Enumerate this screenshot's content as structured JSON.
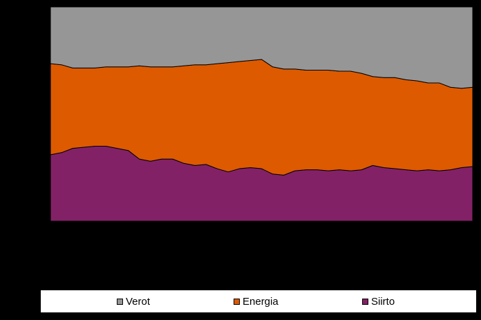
{
  "chart_data": {
    "type": "area",
    "stacked": true,
    "normalized": true,
    "title": "",
    "xlabel": "",
    "ylabel": "",
    "ylim": [
      0,
      1
    ],
    "grid": false,
    "legend_position": "bottom",
    "x": [
      0,
      1,
      2,
      3,
      4,
      5,
      6,
      7,
      8,
      9,
      10,
      11,
      12,
      13,
      14,
      15,
      16,
      17,
      18,
      19,
      20,
      21,
      22,
      23,
      24,
      25,
      26,
      27,
      28,
      29,
      30,
      31,
      32,
      33,
      34,
      35,
      36,
      37,
      38
    ],
    "series": [
      {
        "name": "Siirto",
        "color": "#832166",
        "values": [
          0.31,
          0.32,
          0.34,
          0.345,
          0.35,
          0.35,
          0.34,
          0.33,
          0.29,
          0.28,
          0.29,
          0.29,
          0.27,
          0.26,
          0.265,
          0.245,
          0.23,
          0.245,
          0.25,
          0.245,
          0.22,
          0.215,
          0.235,
          0.24,
          0.24,
          0.235,
          0.24,
          0.235,
          0.24,
          0.26,
          0.25,
          0.245,
          0.24,
          0.235,
          0.24,
          0.235,
          0.24,
          0.25,
          0.255
        ]
      },
      {
        "name": "Energia",
        "color": "#dd5a00",
        "values": [
          0.425,
          0.41,
          0.375,
          0.37,
          0.365,
          0.37,
          0.38,
          0.39,
          0.435,
          0.44,
          0.43,
          0.43,
          0.455,
          0.47,
          0.465,
          0.49,
          0.51,
          0.5,
          0.5,
          0.51,
          0.5,
          0.495,
          0.475,
          0.465,
          0.465,
          0.47,
          0.46,
          0.465,
          0.45,
          0.415,
          0.42,
          0.425,
          0.42,
          0.42,
          0.405,
          0.41,
          0.385,
          0.37,
          0.37
        ]
      },
      {
        "name": "Verot",
        "color": "#969696",
        "values": [
          0.265,
          0.27,
          0.285,
          0.285,
          0.285,
          0.28,
          0.28,
          0.28,
          0.275,
          0.28,
          0.28,
          0.28,
          0.275,
          0.27,
          0.27,
          0.265,
          0.26,
          0.255,
          0.25,
          0.245,
          0.28,
          0.29,
          0.29,
          0.295,
          0.295,
          0.295,
          0.3,
          0.3,
          0.31,
          0.325,
          0.33,
          0.33,
          0.34,
          0.345,
          0.355,
          0.355,
          0.375,
          0.38,
          0.375
        ]
      }
    ]
  },
  "legend": {
    "items": [
      {
        "label": "Verot",
        "color": "#969696"
      },
      {
        "label": "Energia",
        "color": "#dd5a00"
      },
      {
        "label": "Siirto",
        "color": "#832166"
      }
    ]
  }
}
